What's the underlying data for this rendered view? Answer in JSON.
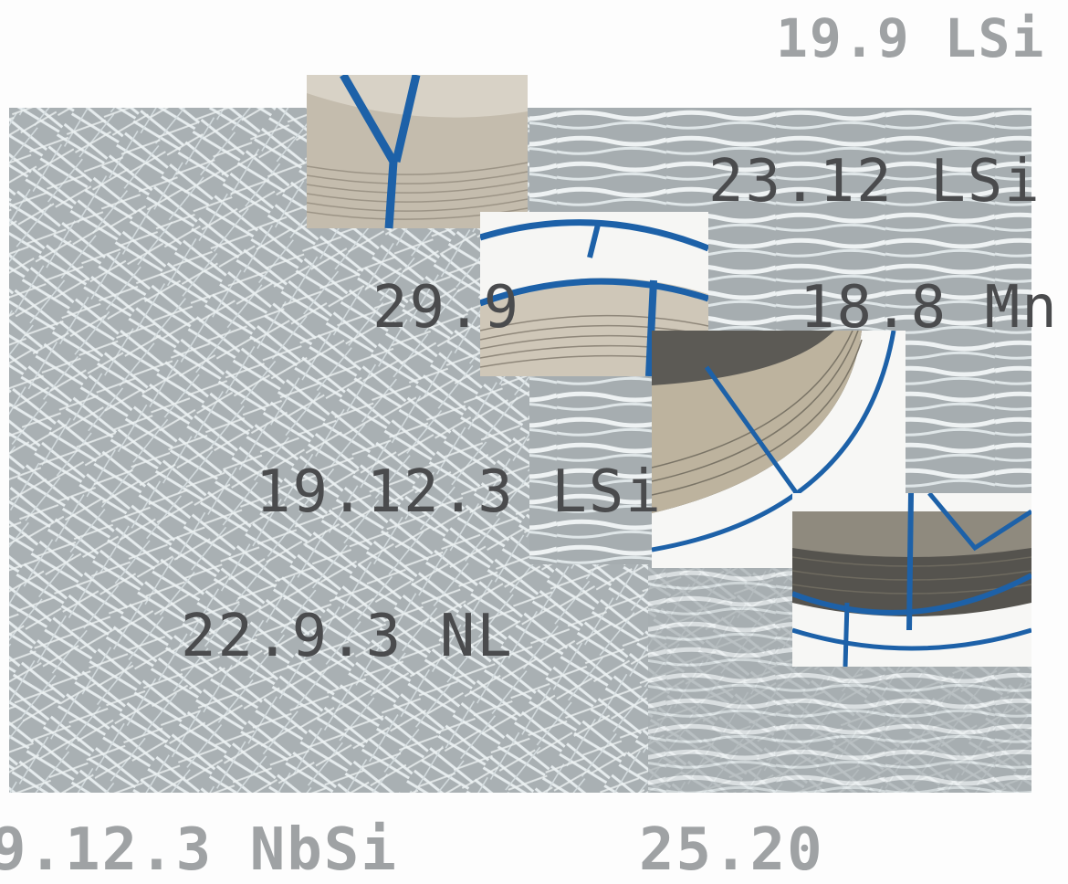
{
  "labels": {
    "top_right": "19.9 LSi",
    "l1": "23.12 LSi",
    "l2": "29.9",
    "l3": "18.8 Mn",
    "l4": "19.12.3 LSi",
    "l5": "22.9.3 NL",
    "bottom_left": "9.12.3 NbSi",
    "bottom_right": "25.20"
  },
  "colors": {
    "wire_blue": "#1d61a8",
    "texture_gray": "#a6adb0",
    "label_dark": "#4a4b4d",
    "label_light": "#9fa2a4"
  }
}
